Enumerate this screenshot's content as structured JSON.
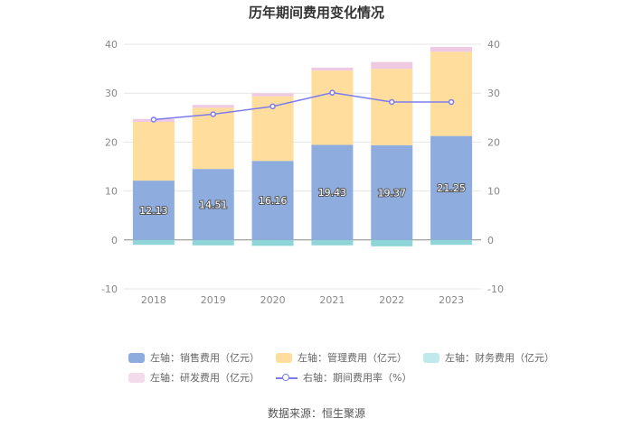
{
  "chart_data": {
    "type": "bar",
    "title": "历年期间费用变化情况",
    "categories": [
      "2018",
      "2019",
      "2020",
      "2021",
      "2022",
      "2023"
    ],
    "left_axis": {
      "ylim": [
        -10,
        40
      ],
      "ticks": [
        "40",
        "30",
        "20",
        "10",
        "0",
        "-10"
      ]
    },
    "right_axis": {
      "ylim": [
        -10,
        40
      ],
      "ticks": [
        "40",
        "30",
        "20",
        "10",
        "0",
        "-10"
      ]
    },
    "grid": true,
    "legend_position": "bottom",
    "series": [
      {
        "name": "左轴：销售费用（亿元）",
        "type": "bar",
        "stack": "total",
        "color": "#8eadde",
        "values": [
          12.13,
          14.51,
          16.16,
          19.43,
          19.37,
          21.25
        ],
        "labels": [
          "12.13",
          "14.51",
          "16.16",
          "19.43",
          "19.37",
          "21.25"
        ]
      },
      {
        "name": "左轴：管理费用（亿元）",
        "type": "bar",
        "stack": "total",
        "color": "#ffdd9c",
        "values": [
          12.0,
          12.5,
          13.2,
          15.2,
          15.6,
          17.2
        ]
      },
      {
        "name": "左轴：财务费用（亿元）",
        "type": "bar",
        "stack": "total",
        "color": "#8fd5d8",
        "values": [
          -1.0,
          -1.1,
          -1.2,
          -1.1,
          -1.3,
          -1.0
        ]
      },
      {
        "name": "左轴：研发费用（亿元）",
        "type": "bar",
        "stack": "total",
        "color": "#efcbe3",
        "values": [
          0.6,
          0.6,
          0.6,
          0.6,
          1.4,
          1.0
        ]
      },
      {
        "name": "右轴：期间费用率（%）",
        "type": "line",
        "axis": "right",
        "color": "#7b7bef",
        "values": [
          24.6,
          25.7,
          27.3,
          30.1,
          28.2,
          28.2
        ]
      }
    ]
  },
  "source": "数据来源：恒生聚源"
}
